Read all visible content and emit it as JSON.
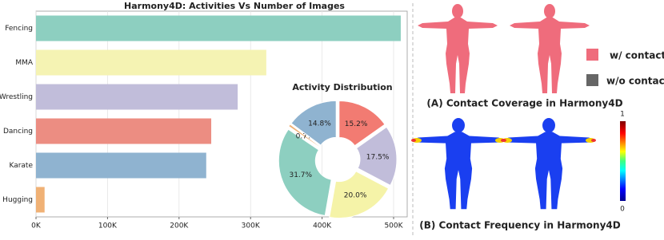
{
  "chart_data": [
    {
      "type": "barh",
      "title": "Harmony4D: Activities Vs Number of Images",
      "categories": [
        "Fencing",
        "MMA",
        "Wrestling",
        "Dancing",
        "Karate",
        "Hugging"
      ],
      "values": [
        510000,
        322000,
        282000,
        245000,
        238000,
        12000
      ],
      "colors": [
        "#8dcfc0",
        "#f5f3b3",
        "#c1bdda",
        "#ec8d82",
        "#8fb3d0",
        "#f0b175"
      ],
      "xlim": [
        0,
        519000
      ],
      "xticks": [
        {
          "value": 0,
          "label": "0K"
        },
        {
          "value": 100000,
          "label": "100K"
        },
        {
          "value": 200000,
          "label": "200K"
        },
        {
          "value": 300000,
          "label": "300K"
        },
        {
          "value": 400000,
          "label": "400K"
        },
        {
          "value": 500000,
          "label": "500K"
        }
      ],
      "grid": true
    },
    {
      "type": "donut",
      "title": "Activity Distribution",
      "values": [
        15.2,
        17.5,
        20.0,
        31.7,
        0.7,
        14.8
      ],
      "value_labels": [
        "15.2%",
        "17.5%",
        "20.0%",
        "31.7%",
        "0.7%",
        "14.8%"
      ],
      "colors": [
        "#f27b72",
        "#c1bdda",
        "#f5f3a8",
        "#8dcfc0",
        "#f0b175",
        "#8fb3d0"
      ]
    }
  ],
  "panels": {
    "legend": [
      {
        "label": "w/ contact",
        "color": "#ef6c7c"
      },
      {
        "label": "w/o contact",
        "color": "#666666"
      }
    ],
    "captions": [
      "(A) Contact Coverage in Harmony4D",
      "(B) Contact Frequency in Harmony4D"
    ],
    "colorbar": {
      "ticks": [
        0,
        1
      ]
    }
  }
}
